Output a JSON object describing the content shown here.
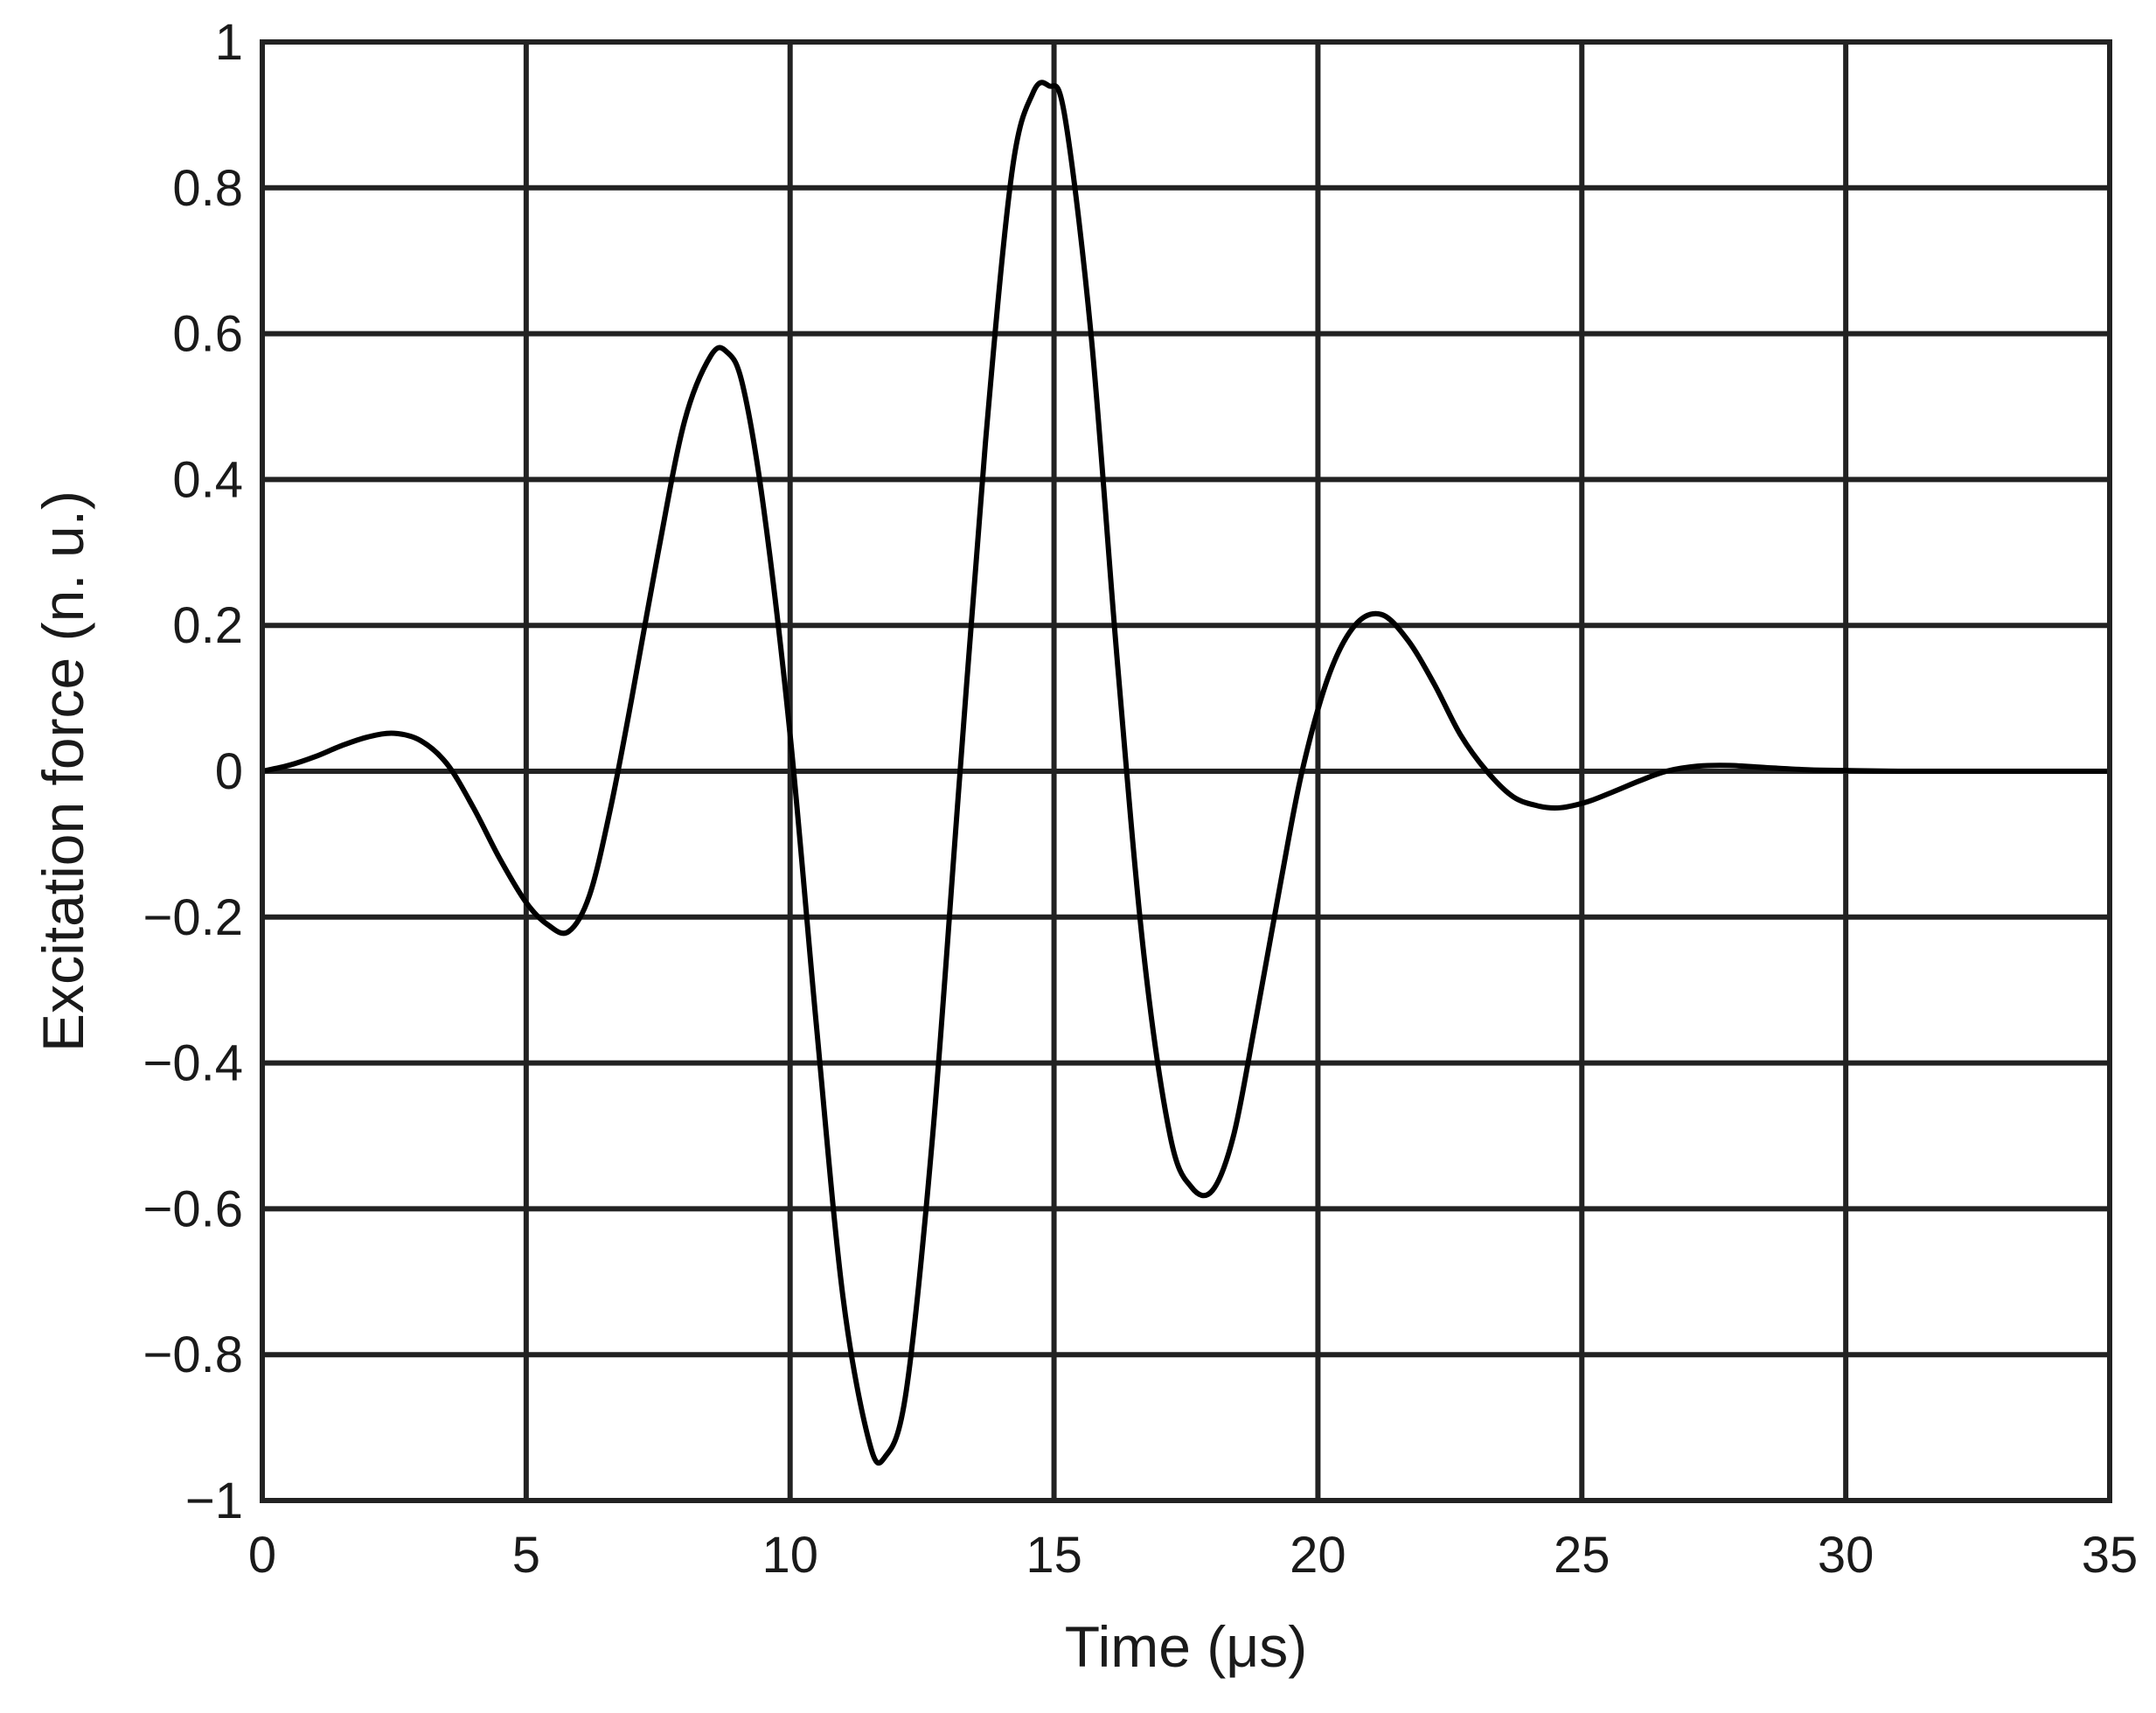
{
  "chart_data": {
    "type": "line",
    "title": "",
    "xlabel": "Time (μs)",
    "ylabel": "Excitation force (n. u.)",
    "xlim": [
      0,
      35
    ],
    "ylim": [
      -1,
      1
    ],
    "grid": true,
    "x_ticks": [
      0,
      5,
      10,
      15,
      20,
      25,
      30,
      35
    ],
    "x_tick_labels": [
      "0",
      "5",
      "10",
      "15",
      "20",
      "25",
      "30",
      "35"
    ],
    "y_ticks": [
      1,
      0.8,
      0.6,
      0.4,
      0.2,
      0,
      -0.2,
      -0.4,
      -0.6,
      -0.8,
      -1
    ],
    "y_tick_labels": [
      "1",
      "0.8",
      "0.6",
      "0.4",
      "0.2",
      "0",
      "−0.2",
      "−0.4",
      "−0.6",
      "−0.8",
      "−1"
    ],
    "series": [
      {
        "color": "#000000",
        "points": [
          [
            0,
            0
          ],
          [
            0.5,
            0.008
          ],
          [
            1,
            0.02
          ],
          [
            1.5,
            0.035
          ],
          [
            2,
            0.047
          ],
          [
            2.5,
            0.052
          ],
          [
            3,
            0.042
          ],
          [
            3.5,
            0.01
          ],
          [
            4,
            -0.05
          ],
          [
            4.5,
            -0.12
          ],
          [
            5,
            -0.18
          ],
          [
            5.4,
            -0.21
          ],
          [
            5.8,
            -0.22
          ],
          [
            6.2,
            -0.17
          ],
          [
            6.6,
            -0.05
          ],
          [
            7,
            0.1
          ],
          [
            7.5,
            0.3
          ],
          [
            8,
            0.48
          ],
          [
            8.5,
            0.57
          ],
          [
            8.8,
            0.575
          ],
          [
            9.1,
            0.53
          ],
          [
            9.5,
            0.36
          ],
          [
            10,
            0.05
          ],
          [
            10.5,
            -0.35
          ],
          [
            11,
            -0.72
          ],
          [
            11.5,
            -0.92
          ],
          [
            11.8,
            -0.94
          ],
          [
            12.2,
            -0.85
          ],
          [
            12.7,
            -0.5
          ],
          [
            13.2,
            -0.02
          ],
          [
            13.7,
            0.45
          ],
          [
            14.2,
            0.82
          ],
          [
            14.6,
            0.93
          ],
          [
            14.9,
            0.94
          ],
          [
            15.2,
            0.9
          ],
          [
            15.7,
            0.6
          ],
          [
            16.2,
            0.15
          ],
          [
            16.7,
            -0.25
          ],
          [
            17.2,
            -0.5
          ],
          [
            17.6,
            -0.57
          ],
          [
            18,
            -0.575
          ],
          [
            18.4,
            -0.5
          ],
          [
            18.8,
            -0.35
          ],
          [
            19.3,
            -0.15
          ],
          [
            19.7,
            0.0
          ],
          [
            20.2,
            0.13
          ],
          [
            20.7,
            0.2
          ],
          [
            21.2,
            0.215
          ],
          [
            21.7,
            0.18
          ],
          [
            22.2,
            0.12
          ],
          [
            22.7,
            0.05
          ],
          [
            23.2,
            0.0
          ],
          [
            23.7,
            -0.035
          ],
          [
            24.2,
            -0.048
          ],
          [
            24.6,
            -0.05
          ],
          [
            25.1,
            -0.042
          ],
          [
            25.6,
            -0.028
          ],
          [
            26.1,
            -0.013
          ],
          [
            26.6,
            0.0
          ],
          [
            27.2,
            0.007
          ],
          [
            27.8,
            0.008
          ],
          [
            28.5,
            0.005
          ],
          [
            29.3,
            0.002
          ],
          [
            30,
            0.001
          ],
          [
            31,
            0.0
          ],
          [
            33,
            0.0
          ],
          [
            35,
            0.0
          ]
        ]
      }
    ]
  }
}
